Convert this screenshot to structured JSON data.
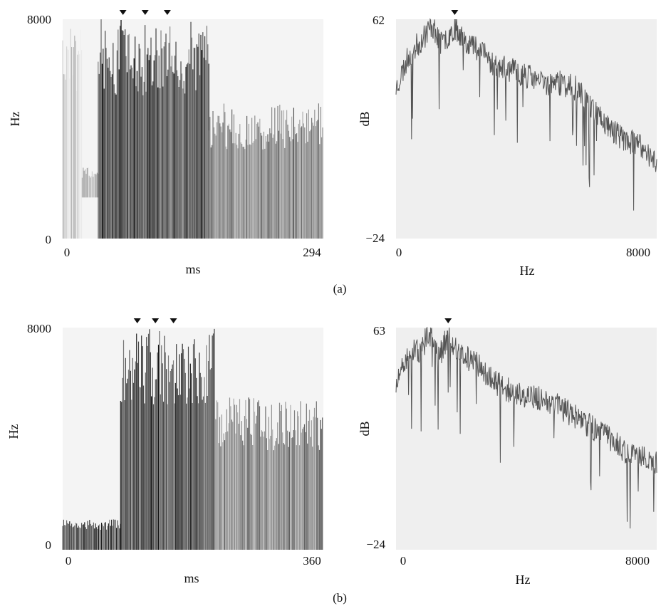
{
  "figure": {
    "panel_labels": [
      "(a)",
      "(b)"
    ]
  },
  "chart_data": [
    {
      "type": "heatmap",
      "panel": "(a)",
      "xlabel": "ms",
      "ylabel": "Hz",
      "xlim": [
        0,
        294
      ],
      "ylim": [
        0,
        8000
      ],
      "x_tick_labels": [
        "0",
        "294"
      ],
      "y_tick_labels": [
        "0",
        "8000"
      ],
      "markers_x_ms": [
        68,
        93,
        118
      ],
      "intensity_segments": [
        {
          "x_range_ms": [
            0,
            22
          ],
          "level": "very light"
        },
        {
          "x_range_ms": [
            22,
            40
          ],
          "level": "light",
          "band_hz": [
            1500,
            2600
          ]
        },
        {
          "x_range_ms": [
            40,
            165
          ],
          "level": "dark",
          "band_hz": [
            0,
            8000
          ]
        },
        {
          "x_range_ms": [
            165,
            294
          ],
          "level": "medium",
          "band_hz": [
            0,
            5000
          ]
        }
      ],
      "grid": false
    },
    {
      "type": "line",
      "panel": "(a)",
      "xlabel": "Hz",
      "ylabel": "dB",
      "xlim": [
        0,
        8000
      ],
      "ylim": [
        -24,
        62
      ],
      "x_tick_labels": [
        "0",
        "8000"
      ],
      "y_tick_labels": [
        "62",
        "−24"
      ],
      "marker_x_hz": 1800,
      "series": [
        {
          "x": [
            0,
            400,
            800,
            1100,
            1400,
            1800,
            2200,
            2600,
            3000,
            3500,
            4000,
            4500,
            5000,
            5500,
            6000,
            6500,
            7000,
            7500,
            8000
          ],
          "values": [
            35,
            48,
            54,
            60,
            52,
            59,
            53,
            50,
            44,
            42,
            40,
            37,
            37,
            35,
            28,
            20,
            15,
            12,
            6
          ]
        }
      ],
      "grid": false
    },
    {
      "type": "heatmap",
      "panel": "(b)",
      "xlabel": "ms",
      "ylabel": "Hz",
      "xlim": [
        0,
        360
      ],
      "ylim": [
        0,
        8000
      ],
      "x_tick_labels": [
        "0",
        "360"
      ],
      "y_tick_labels": [
        "0",
        "8000"
      ],
      "markers_x_ms": [
        103,
        128,
        153
      ],
      "intensity_segments": [
        {
          "x_range_ms": [
            0,
            80
          ],
          "level": "dark",
          "band_hz": [
            0,
            1100
          ]
        },
        {
          "x_range_ms": [
            80,
            210
          ],
          "level": "dark",
          "band_hz": [
            0,
            8000
          ]
        },
        {
          "x_range_ms": [
            210,
            360
          ],
          "level": "medium",
          "band_hz": [
            0,
            5500
          ]
        }
      ],
      "grid": false
    },
    {
      "type": "line",
      "panel": "(b)",
      "xlabel": "Hz",
      "ylabel": "dB",
      "xlim": [
        0,
        8000
      ],
      "ylim": [
        -24,
        63
      ],
      "x_tick_labels": [
        "0",
        "8000"
      ],
      "y_tick_labels": [
        "63",
        "−24"
      ],
      "marker_x_hz": 1600,
      "series": [
        {
          "x": [
            0,
            400,
            800,
            1000,
            1300,
            1600,
            2000,
            2500,
            3000,
            3500,
            4000,
            4500,
            5000,
            5500,
            6000,
            6500,
            7000,
            7500,
            8000
          ],
          "values": [
            40,
            53,
            54,
            62,
            51,
            60,
            52,
            49,
            42,
            38,
            36,
            35,
            32,
            28,
            24,
            20,
            15,
            12,
            10
          ]
        }
      ],
      "grid": false
    }
  ]
}
